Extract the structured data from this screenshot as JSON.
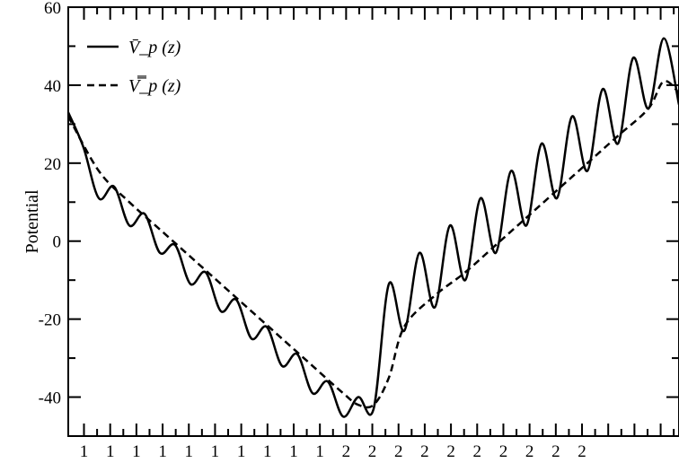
{
  "chart_data": {
    "type": "line",
    "title": "",
    "xlabel": "",
    "ylabel": "Potential",
    "ylim": [
      -50,
      60
    ],
    "y_ticks": [
      -40,
      -20,
      0,
      20,
      40,
      60
    ],
    "x_tick_labels": [
      "1",
      "1",
      "1",
      "1",
      "1",
      "1",
      "1",
      "1",
      "1",
      "1",
      "2",
      "2",
      "2",
      "2",
      "2",
      "2",
      "2",
      "2",
      "2",
      "2"
    ],
    "grid": false,
    "legend_position": "top-left",
    "series": [
      {
        "name": "V̄_p (z)",
        "style": "solid",
        "x": [
          0,
          0.5,
          1,
          1.5,
          2,
          2.5,
          3,
          3.5,
          4,
          4.5,
          5,
          5.5,
          6,
          6.5,
          7,
          7.5,
          8,
          8.5,
          9,
          9.5,
          10,
          10.5,
          11,
          11.5,
          12,
          12.5,
          13,
          13.5,
          14,
          14.5,
          15,
          15.5,
          16,
          16.5,
          17,
          17.5,
          18,
          18.5,
          19,
          19.5,
          20
        ],
        "values": [
          33,
          24,
          11,
          14,
          4,
          7,
          -3,
          -1,
          -11,
          -8,
          -18,
          -15,
          -25,
          -22,
          -32,
          -29,
          -39,
          -36,
          -45,
          -40,
          -43,
          -11,
          -23,
          -3,
          -17,
          4,
          -10,
          11,
          -3,
          18,
          4,
          25,
          11,
          32,
          18,
          39,
          25,
          47,
          34,
          52,
          35
        ]
      },
      {
        "name": "V̿_p (z)",
        "style": "dashed",
        "x": [
          0,
          1,
          2,
          3,
          4,
          5,
          6,
          7,
          8,
          9,
          9.5,
          10,
          10.5,
          11,
          12,
          13,
          14,
          15,
          16,
          17,
          18,
          19,
          19.5,
          20
        ],
        "values": [
          32,
          18,
          10,
          3,
          -4,
          -11,
          -18,
          -25,
          -32,
          -39,
          -42,
          -42,
          -35,
          -22,
          -14,
          -8,
          -1,
          6,
          13,
          20,
          27,
          34,
          41,
          38
        ]
      }
    ]
  }
}
